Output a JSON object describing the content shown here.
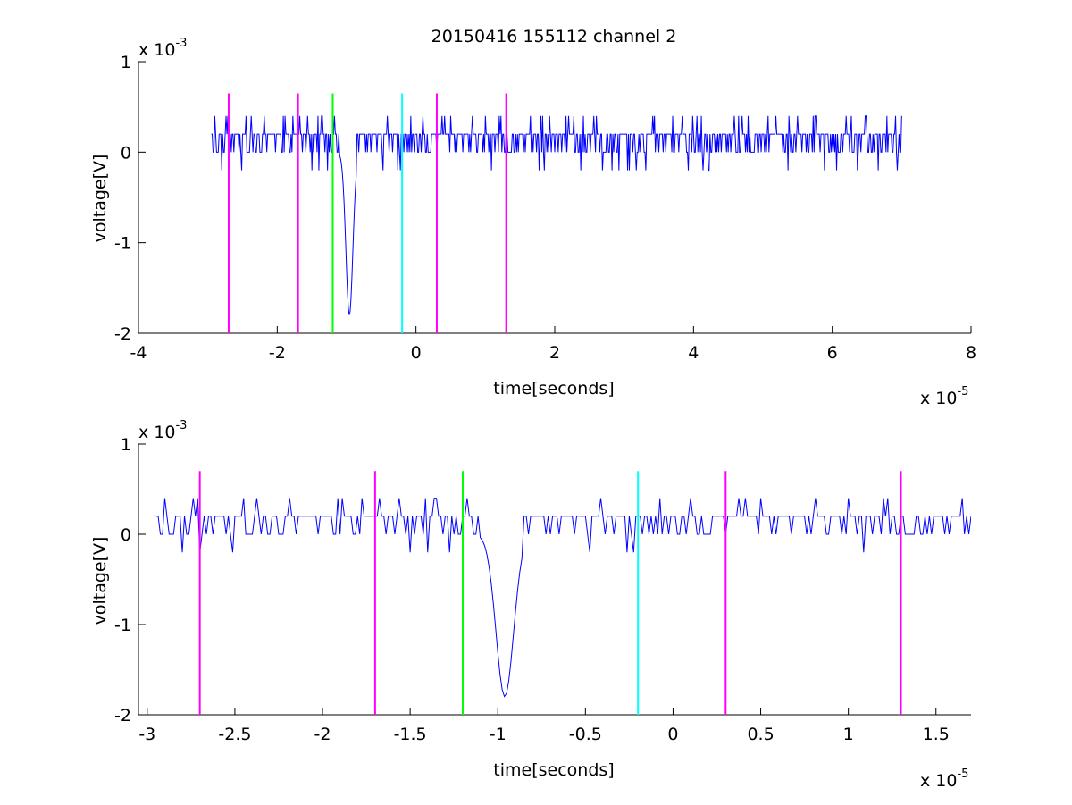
{
  "figure_title": "20150416 155112 channel 2",
  "colors": {
    "signal": "#0000ff",
    "magenta_marker": "#ff00ff",
    "green_marker": "#00ff00",
    "cyan_marker": "#00ffff",
    "axes": "#000000"
  },
  "chart_data": [
    {
      "type": "line",
      "title": "20150416 155112 channel 2",
      "xlabel": "time[seconds]",
      "ylabel": "voltage[V]",
      "x_multiplier_label": "x 10",
      "x_multiplier_exponent": "-5",
      "y_multiplier_label": "x 10",
      "y_multiplier_exponent": "-3",
      "xlim": [
        -4,
        8
      ],
      "ylim": [
        -2,
        1
      ],
      "xticks": [
        -4,
        -2,
        0,
        2,
        4,
        6,
        8
      ],
      "xtick_labels": [
        "-4",
        "-2",
        "0",
        "2",
        "4",
        "6",
        "8"
      ],
      "yticks": [
        -2,
        -1,
        0,
        1
      ],
      "ytick_labels": [
        "-2",
        "-1",
        "0",
        "1"
      ],
      "grid": false,
      "series": [
        {
          "color": "#0000ff",
          "x_range": [
            -2.95,
            7.0
          ],
          "baseline": 0.1,
          "noise_levels": [
            -0.2,
            0,
            0.2,
            0.4
          ],
          "spike": {
            "x": -0.96,
            "min": -1.8
          }
        }
      ],
      "markers": [
        {
          "x": -2.7,
          "color": "#ff00ff",
          "y_range": [
            -2,
            0.65
          ]
        },
        {
          "x": -1.7,
          "color": "#ff00ff",
          "y_range": [
            -2,
            0.65
          ]
        },
        {
          "x": -1.2,
          "color": "#00ff00",
          "y_range": [
            -2,
            0.65
          ]
        },
        {
          "x": -0.2,
          "color": "#00ffff",
          "y_range": [
            -2,
            0.65
          ]
        },
        {
          "x": 0.3,
          "color": "#ff00ff",
          "y_range": [
            -2,
            0.65
          ]
        },
        {
          "x": 1.3,
          "color": "#ff00ff",
          "y_range": [
            -2,
            0.65
          ]
        }
      ]
    },
    {
      "type": "line",
      "title": "",
      "xlabel": "time[seconds]",
      "ylabel": "voltage[V]",
      "x_multiplier_label": "x 10",
      "x_multiplier_exponent": "-5",
      "y_multiplier_label": "x 10",
      "y_multiplier_exponent": "-3",
      "xlim": [
        -3.05,
        1.7
      ],
      "ylim": [
        -2,
        1
      ],
      "xticks": [
        -3,
        -2.5,
        -2,
        -1.5,
        -1,
        -0.5,
        0,
        0.5,
        1,
        1.5
      ],
      "xtick_labels": [
        "-3",
        "-2.5",
        "-2",
        "-1.5",
        "-1",
        "-0.5",
        "0",
        "0.5",
        "1",
        "1.5"
      ],
      "yticks": [
        -2,
        -1,
        0,
        1
      ],
      "ytick_labels": [
        "-2",
        "-1",
        "0",
        "1"
      ],
      "grid": false,
      "series": [
        {
          "color": "#0000ff",
          "x_range": [
            -2.95,
            1.7
          ],
          "baseline": 0.1,
          "noise_levels": [
            -0.2,
            0,
            0.2,
            0.4
          ],
          "spike": {
            "x": -0.96,
            "min": -1.8
          }
        }
      ],
      "markers": [
        {
          "x": -2.7,
          "color": "#ff00ff",
          "y_range": [
            -2,
            0.7
          ]
        },
        {
          "x": -1.7,
          "color": "#ff00ff",
          "y_range": [
            -2,
            0.7
          ]
        },
        {
          "x": -1.2,
          "color": "#00ff00",
          "y_range": [
            -2,
            0.7
          ]
        },
        {
          "x": -0.2,
          "color": "#00ffff",
          "y_range": [
            -2,
            0.7
          ]
        },
        {
          "x": 0.3,
          "color": "#ff00ff",
          "y_range": [
            -2,
            0.7
          ]
        },
        {
          "x": 1.3,
          "color": "#ff00ff",
          "y_range": [
            -2,
            0.7
          ]
        }
      ]
    }
  ]
}
